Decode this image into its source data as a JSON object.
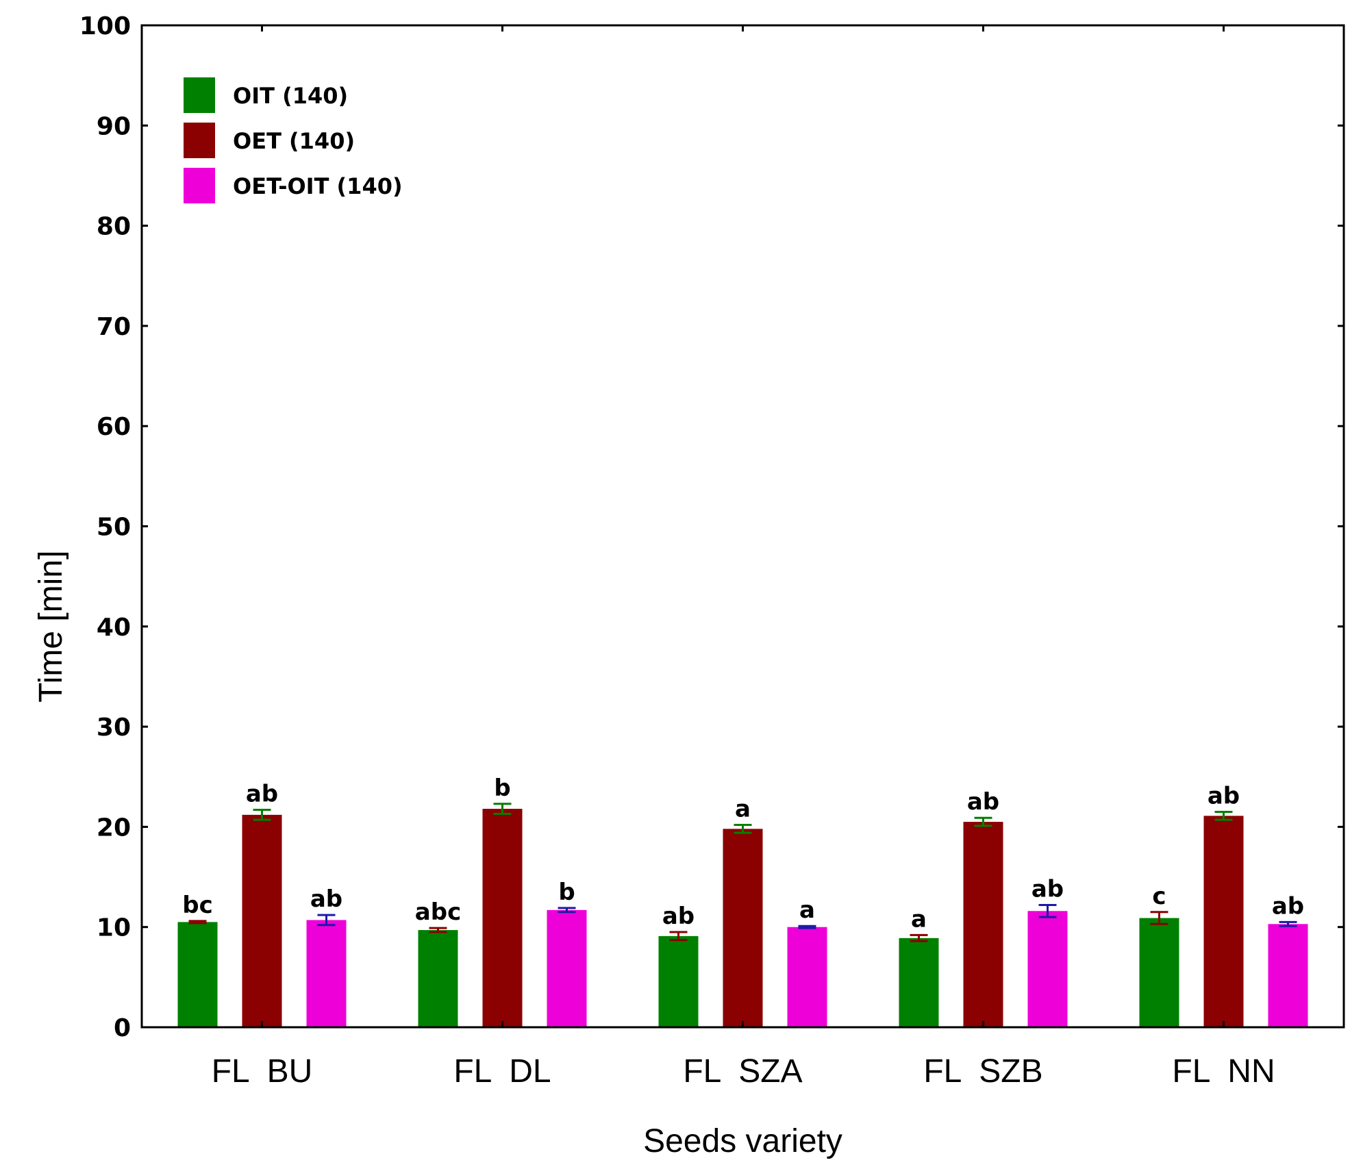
{
  "chart_data": {
    "type": "bar",
    "title": "",
    "xlabel": "Seeds variety",
    "ylabel": "Time [min]",
    "ylim": [
      0,
      100
    ],
    "yticks": [
      0,
      10,
      20,
      30,
      40,
      50,
      60,
      70,
      80,
      90,
      100
    ],
    "grid": false,
    "legend_position": "top-left",
    "categories": [
      "FL  BU",
      "FL  DL",
      "FL  SZA",
      "FL  SZB",
      "FL  NN"
    ],
    "series": [
      {
        "name": "OIT (140)",
        "color": "#008000",
        "error_color": "#8B0000",
        "values": [
          10.5,
          9.7,
          9.1,
          8.9,
          10.9
        ],
        "errors": [
          0.1,
          0.2,
          0.4,
          0.3,
          0.6
        ],
        "labels": [
          "bc",
          "abc",
          "ab",
          "a",
          "c"
        ]
      },
      {
        "name": "OET (140)",
        "color": "#8B0000",
        "error_color": "#008000",
        "values": [
          21.2,
          21.8,
          19.8,
          20.5,
          21.1
        ],
        "errors": [
          0.5,
          0.5,
          0.4,
          0.4,
          0.4
        ],
        "labels": [
          "ab",
          "b",
          "a",
          "ab",
          "ab"
        ]
      },
      {
        "name": "OET-OIT (140)",
        "color": "#EE00D8",
        "error_color": "#1A1AAA",
        "values": [
          10.7,
          11.7,
          10.0,
          11.6,
          10.3
        ],
        "errors": [
          0.5,
          0.2,
          0.1,
          0.6,
          0.2
        ],
        "labels": [
          "ab",
          "b",
          "a",
          "ab",
          "ab"
        ]
      }
    ]
  }
}
